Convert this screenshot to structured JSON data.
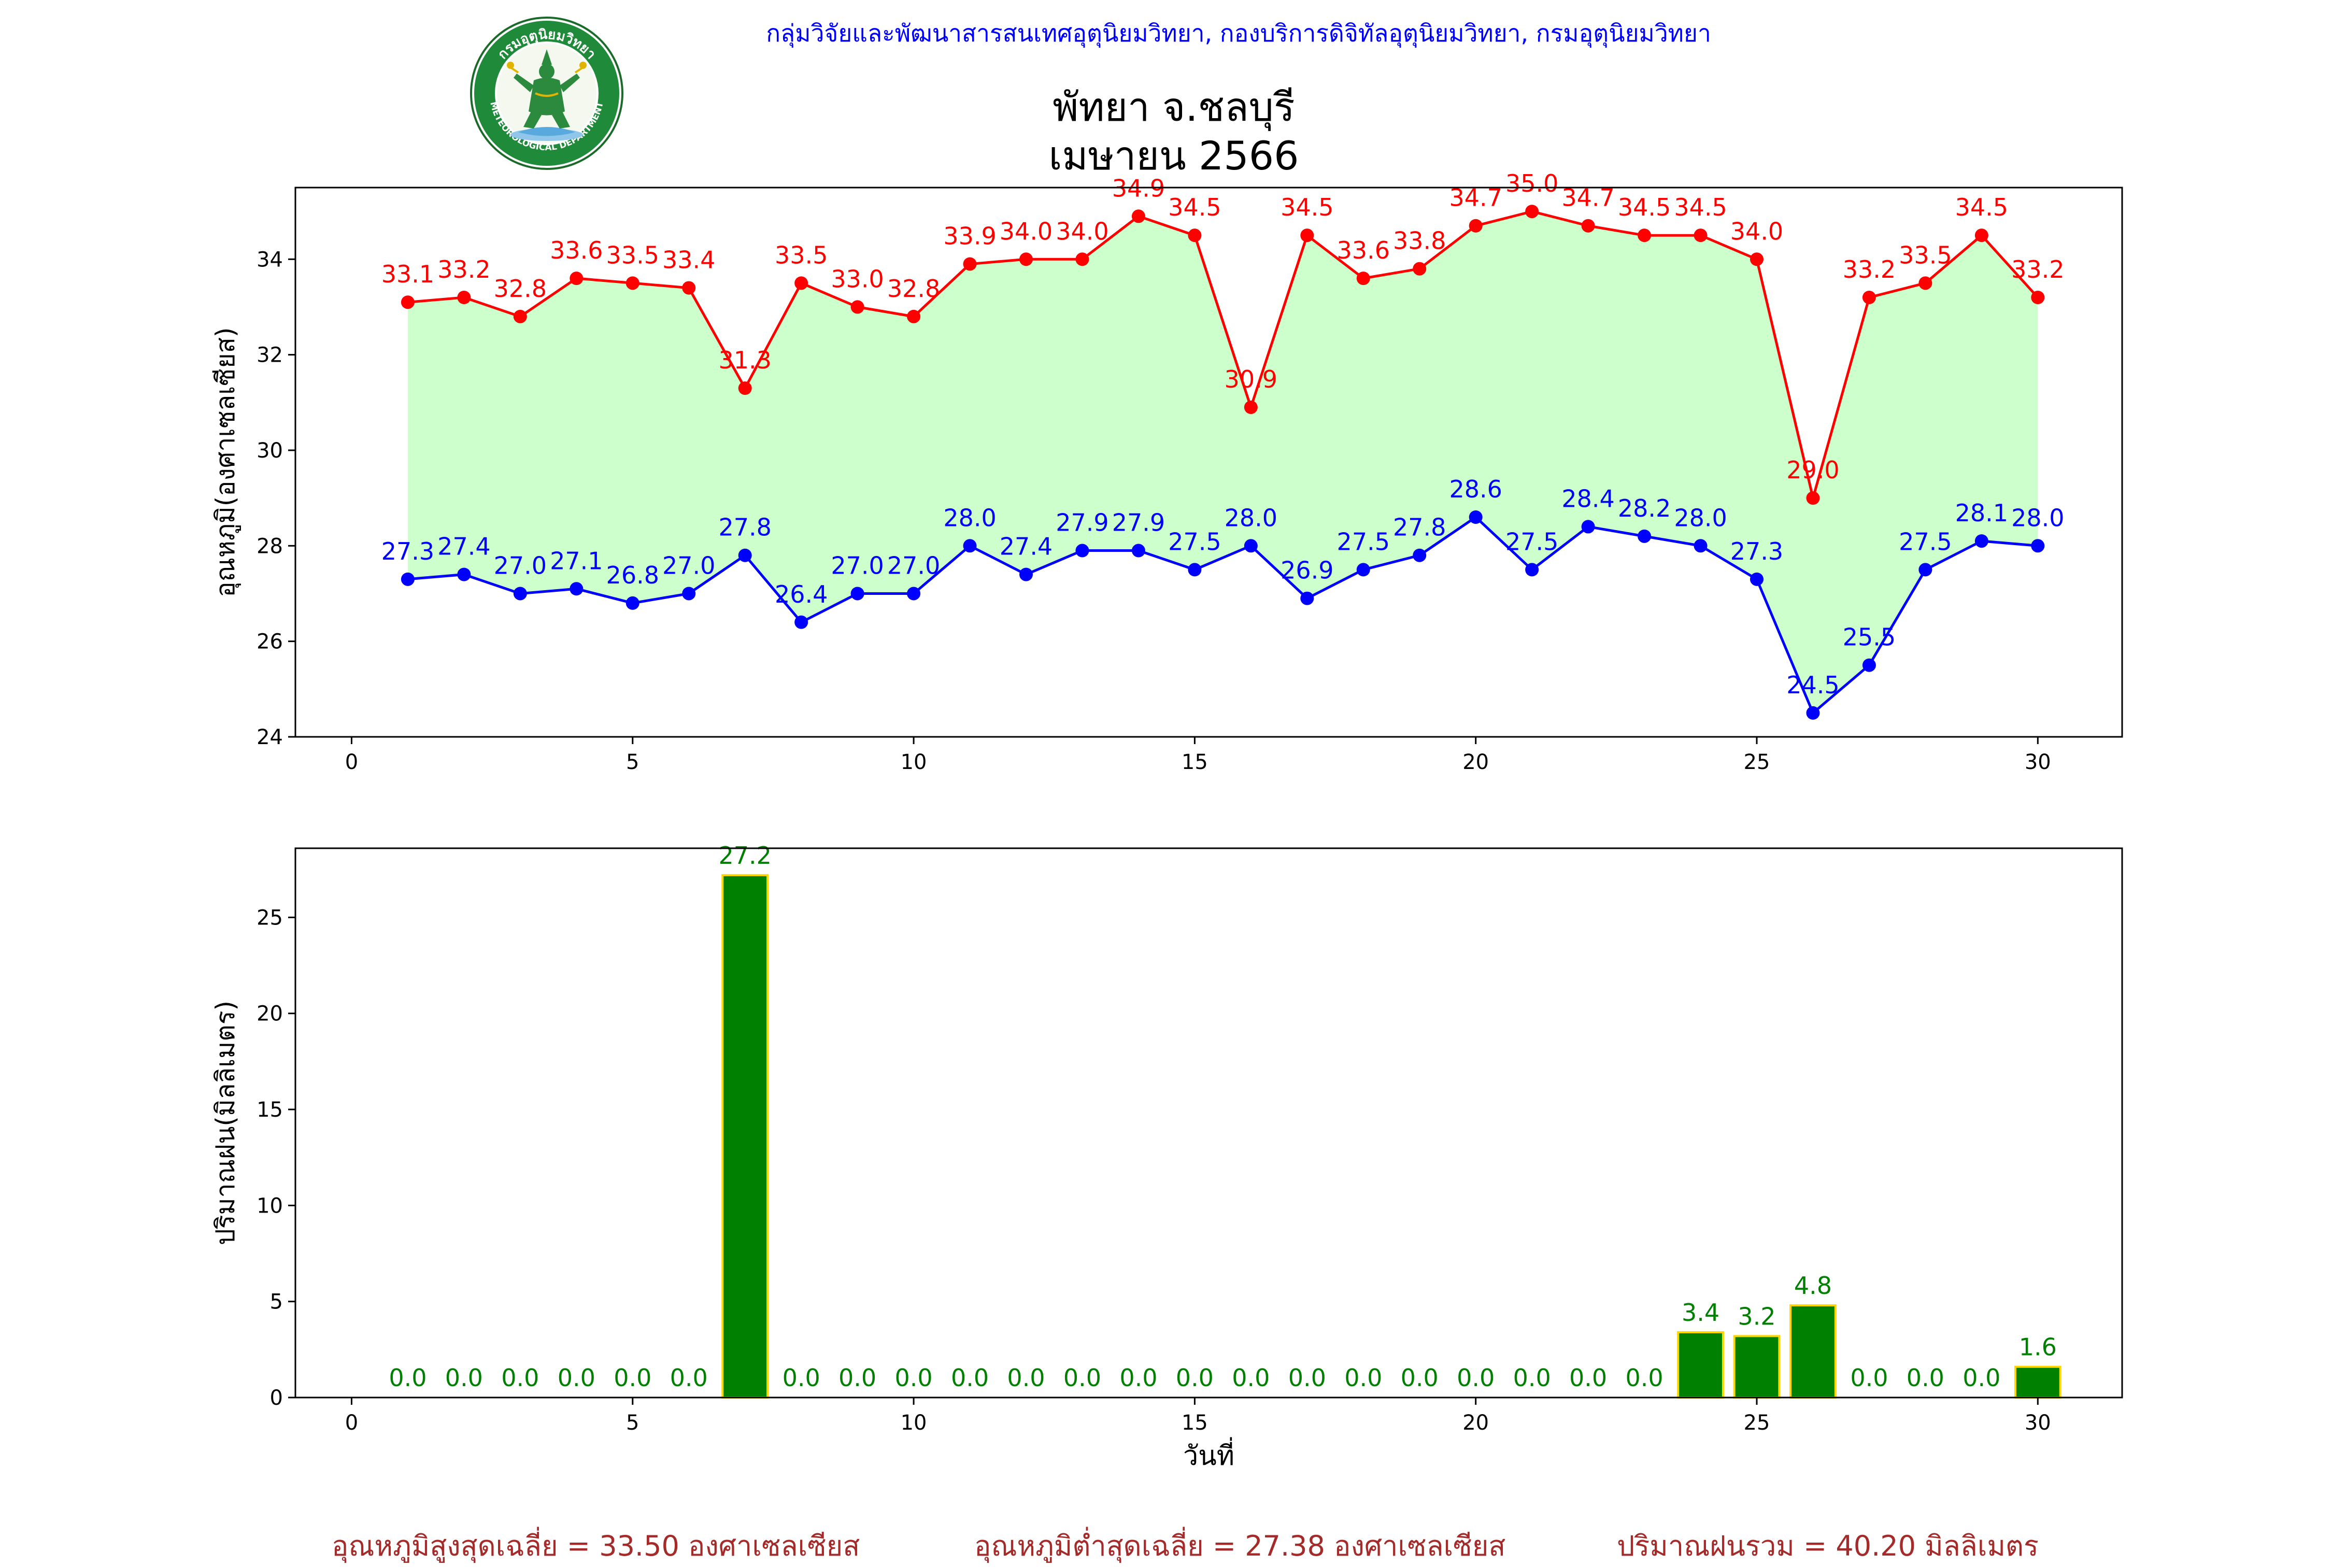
{
  "header": {
    "org_line": "กลุ่มวิจัยและพัฒนาสารสนเทศอุตุนิยมวิทยา, กองบริการดิจิทัลอุตุนิยมวิทยา, กรมอุตุนิยมวิทยา",
    "logo_text_top": "กรมอุตุนิยมวิทยา",
    "logo_text_bottom": "METEOROLOGICAL DEPARTMENT"
  },
  "title": {
    "line1": "พัทยา จ.ชลบุรี",
    "line2": "เมษายน 2566"
  },
  "colors": {
    "max_temp": "#ff0000",
    "min_temp": "#0000ff",
    "fill": "#ccffcc",
    "rain_bar": "#008000",
    "rain_edge": "#ffd700",
    "rain_label": "#008000",
    "footer": "#a52a2a"
  },
  "chart_data": [
    {
      "type": "line",
      "ylabel": "อุณหภูมิ(องศาเซลเซียส)",
      "xlabel": "",
      "xlim": [
        -1,
        31.5
      ],
      "ylim": [
        24,
        35.5
      ],
      "xticks": [
        0,
        5,
        10,
        15,
        20,
        25,
        30
      ],
      "yticks": [
        24,
        26,
        28,
        30,
        32,
        34
      ],
      "grid": false,
      "x": [
        1,
        2,
        3,
        4,
        5,
        6,
        7,
        8,
        9,
        10,
        11,
        12,
        13,
        14,
        15,
        16,
        17,
        18,
        19,
        20,
        21,
        22,
        23,
        24,
        25,
        26,
        27,
        28,
        29,
        30
      ],
      "series": [
        {
          "name": "",
          "key": "max",
          "values": [
            33.1,
            33.2,
            32.8,
            33.6,
            33.5,
            33.4,
            31.3,
            33.5,
            33.0,
            32.8,
            33.9,
            34.0,
            34.0,
            34.9,
            34.5,
            30.9,
            34.5,
            33.6,
            33.8,
            34.7,
            35.0,
            34.7,
            34.5,
            34.5,
            34.0,
            29.0,
            33.2,
            33.5,
            34.5,
            33.2
          ]
        },
        {
          "name": "",
          "key": "min",
          "values": [
            27.3,
            27.4,
            27.0,
            27.1,
            26.8,
            27.0,
            27.8,
            26.4,
            27.0,
            27.0,
            28.0,
            27.4,
            27.9,
            27.9,
            27.5,
            28.0,
            26.9,
            27.5,
            27.8,
            28.6,
            27.5,
            28.4,
            28.2,
            28.0,
            27.3,
            24.5,
            25.5,
            27.5,
            28.1,
            28.0
          ]
        }
      ]
    },
    {
      "type": "bar",
      "ylabel": "ปริมาณฝน(มิลลิเมตร)",
      "xlabel": "วันที่",
      "xlim": [
        -1,
        31.5
      ],
      "ylim": [
        0,
        28.6
      ],
      "xticks": [
        0,
        5,
        10,
        15,
        20,
        25,
        30
      ],
      "yticks": [
        0,
        5,
        10,
        15,
        20,
        25
      ],
      "grid": false,
      "categories": [
        1,
        2,
        3,
        4,
        5,
        6,
        7,
        8,
        9,
        10,
        11,
        12,
        13,
        14,
        15,
        16,
        17,
        18,
        19,
        20,
        21,
        22,
        23,
        24,
        25,
        26,
        27,
        28,
        29,
        30
      ],
      "values": [
        0.0,
        0.0,
        0.0,
        0.0,
        0.0,
        0.0,
        27.2,
        0.0,
        0.0,
        0.0,
        0.0,
        0.0,
        0.0,
        0.0,
        0.0,
        0.0,
        0.0,
        0.0,
        0.0,
        0.0,
        0.0,
        0.0,
        0.0,
        3.4,
        3.2,
        4.8,
        0.0,
        0.0,
        0.0,
        1.6
      ]
    }
  ],
  "footer": {
    "avg_max": "อุณหภูมิสูงสุดเฉลี่ย = 33.50 องศาเซลเซียส",
    "avg_min": "อุณหภูมิต่ำสุดเฉลี่ย = 27.38 องศาเซลเซียส",
    "total_rain": "ปริมาณฝนรวม = 40.20 มิลลิเมตร"
  }
}
